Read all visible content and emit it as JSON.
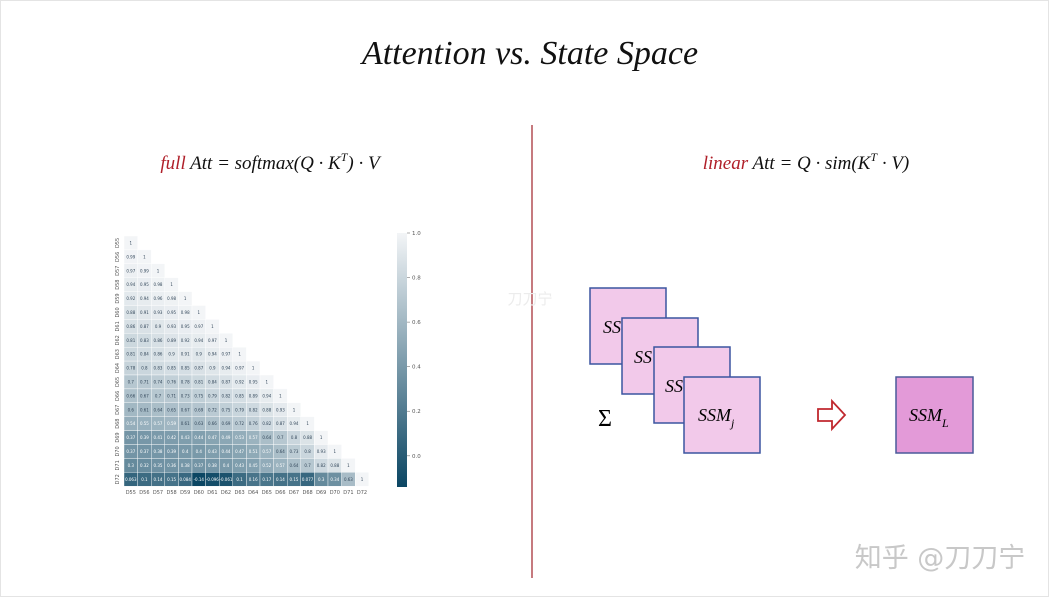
{
  "slide": {
    "title": "Attention vs. State Space",
    "left_formula": {
      "emphasis": "full",
      "main": " Att = softmax(Q · K",
      "sup": "T",
      "tail": ") · V"
    },
    "right_formula": {
      "emphasis": "linear",
      "main": " Att = Q · sim(K",
      "sup": "T",
      "tail": " · V)"
    },
    "diagram": {
      "stack": [
        "SS",
        "SS",
        "SS"
      ],
      "front": {
        "text": "SSM",
        "sub": "j"
      },
      "sum": "Σ",
      "result": {
        "text": "SSM",
        "sub": "L"
      }
    },
    "watermark_center": "刀刀宁",
    "watermark_corner": "知乎 @刀刀宁"
  },
  "chart_data": {
    "type": "heatmap",
    "labels": [
      "D55",
      "D56",
      "D57",
      "D58",
      "D59",
      "D60",
      "D61",
      "D62",
      "D63",
      "D64",
      "D65",
      "D66",
      "D67",
      "D68",
      "D69",
      "D70",
      "D71",
      "D72"
    ],
    "values": [
      [
        1
      ],
      [
        0.99,
        1
      ],
      [
        0.97,
        0.99,
        1
      ],
      [
        0.94,
        0.95,
        0.98,
        1
      ],
      [
        0.92,
        0.94,
        0.96,
        0.98,
        1
      ],
      [
        0.88,
        0.91,
        0.93,
        0.95,
        0.98,
        1
      ],
      [
        0.86,
        0.87,
        0.9,
        0.93,
        0.95,
        0.97,
        1
      ],
      [
        0.81,
        0.83,
        0.86,
        0.89,
        0.92,
        0.94,
        0.97,
        1
      ],
      [
        0.81,
        0.84,
        0.86,
        0.9,
        0.91,
        0.9,
        0.94,
        0.97,
        1
      ],
      [
        0.78,
        0.8,
        0.83,
        0.85,
        0.85,
        0.87,
        0.9,
        0.94,
        0.97,
        1
      ],
      [
        0.7,
        0.71,
        0.74,
        0.76,
        0.78,
        0.81,
        0.84,
        0.87,
        0.92,
        0.95,
        1
      ],
      [
        0.66,
        0.67,
        0.7,
        0.71,
        0.73,
        0.75,
        0.79,
        0.82,
        0.85,
        0.89,
        0.94,
        1
      ],
      [
        0.6,
        0.61,
        0.64,
        0.65,
        0.67,
        0.69,
        0.72,
        0.75,
        0.79,
        0.82,
        0.88,
        0.93,
        1
      ],
      [
        0.54,
        0.55,
        0.57,
        0.59,
        0.61,
        0.63,
        0.66,
        0.69,
        0.72,
        0.76,
        0.82,
        0.87,
        0.94,
        1
      ],
      [
        0.37,
        0.39,
        0.41,
        0.42,
        0.43,
        0.44,
        0.47,
        0.49,
        0.53,
        0.57,
        0.64,
        0.7,
        0.8,
        0.88,
        1
      ],
      [
        0.37,
        0.37,
        0.38,
        0.39,
        0.4,
        0.4,
        0.43,
        0.44,
        0.47,
        0.51,
        0.57,
        0.64,
        0.73,
        0.8,
        0.93,
        1
      ],
      [
        0.3,
        0.32,
        0.35,
        0.36,
        0.38,
        0.37,
        0.38,
        0.4,
        0.43,
        0.45,
        0.52,
        0.57,
        0.64,
        0.7,
        0.82,
        0.88,
        1
      ],
      [
        0.063,
        0.1,
        0.14,
        0.15,
        0.084,
        -0.14,
        -0.096,
        -0.061,
        0.1,
        0.16,
        0.17,
        0.14,
        0.15,
        0.077,
        0.3,
        0.34,
        0.63,
        1
      ]
    ],
    "clim": [
      -0.14,
      1
    ],
    "cticks": [
      {
        "value": 0,
        "label": "0.0"
      },
      0.2,
      0.4,
      0.6,
      0.8,
      {
        "value": 1,
        "label": "1.0"
      }
    ],
    "cmap": [
      "#0b4663",
      "#f3f5f7"
    ]
  }
}
